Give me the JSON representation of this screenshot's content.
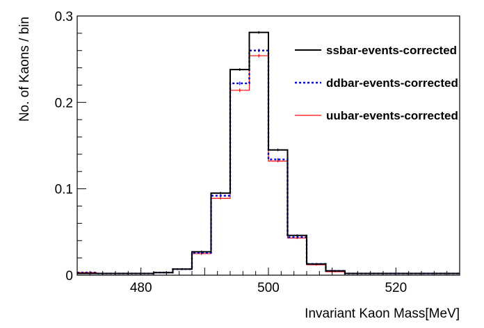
{
  "chart_data": {
    "type": "histogram",
    "title": "",
    "xlabel": "Invariant Kaon Mass[MeV]",
    "ylabel": "No. of Kaons / bin",
    "xlim": [
      470,
      530
    ],
    "ylim": [
      0,
      0.3
    ],
    "x_ticks": [
      480,
      500,
      520
    ],
    "y_ticks": [
      0,
      0.1,
      0.2,
      0.3
    ],
    "y_tick_labels": [
      "0",
      "0.1",
      "0.2",
      "0.3"
    ],
    "bin_edges": [
      470,
      473,
      476,
      479,
      482,
      485,
      488,
      491,
      494,
      497,
      500,
      503,
      506,
      509,
      512,
      515,
      518,
      521,
      524,
      527,
      530
    ],
    "legend_position": "top-right",
    "series": [
      {
        "name": "ssbar-events-corrected",
        "color": "#000000",
        "style": "solid",
        "values": [
          0.002,
          0.002,
          0.002,
          0.002,
          0.003,
          0.007,
          0.027,
          0.095,
          0.238,
          0.281,
          0.145,
          0.046,
          0.013,
          0.005,
          0.002,
          0.002,
          0.002,
          0.002,
          0.002,
          0.002
        ],
        "errors": [
          0.0008,
          0.0008,
          0.0008,
          0.0008,
          0.0009,
          0.001,
          0.0015,
          0.0015,
          0.0015,
          0.0015,
          0.0015,
          0.0012,
          0.001,
          0.0008,
          0.0008,
          0.0008,
          0.0008,
          0.0008,
          0.0008,
          0.0008
        ]
      },
      {
        "name": "ddbar-events-corrected",
        "color": "#0000cc",
        "style": "dotted",
        "values": [
          0.003,
          0.002,
          0.002,
          0.002,
          0.003,
          0.007,
          0.026,
          0.092,
          0.222,
          0.26,
          0.134,
          0.044,
          0.013,
          0.005,
          0.002,
          0.002,
          0.002,
          0.002,
          0.002,
          0.002
        ],
        "errors": [
          0.0008,
          0.0008,
          0.0008,
          0.0008,
          0.0009,
          0.001,
          0.0015,
          0.0015,
          0.002,
          0.002,
          0.0015,
          0.0012,
          0.001,
          0.0008,
          0.0008,
          0.0008,
          0.0008,
          0.0008,
          0.0008,
          0.0008
        ]
      },
      {
        "name": "uubar-events-corrected",
        "color": "#ff0000",
        "style": "solid",
        "values": [
          0.003,
          0.002,
          0.002,
          0.002,
          0.003,
          0.007,
          0.025,
          0.089,
          0.214,
          0.254,
          0.132,
          0.043,
          0.012,
          0.004,
          0.002,
          0.002,
          0.002,
          0.002,
          0.002,
          0.002
        ],
        "errors": [
          0.0008,
          0.0008,
          0.0008,
          0.0008,
          0.0009,
          0.001,
          0.0015,
          0.0015,
          0.002,
          0.002,
          0.0015,
          0.0012,
          0.001,
          0.0008,
          0.0008,
          0.0008,
          0.0008,
          0.0008,
          0.0008,
          0.0008
        ]
      }
    ]
  }
}
